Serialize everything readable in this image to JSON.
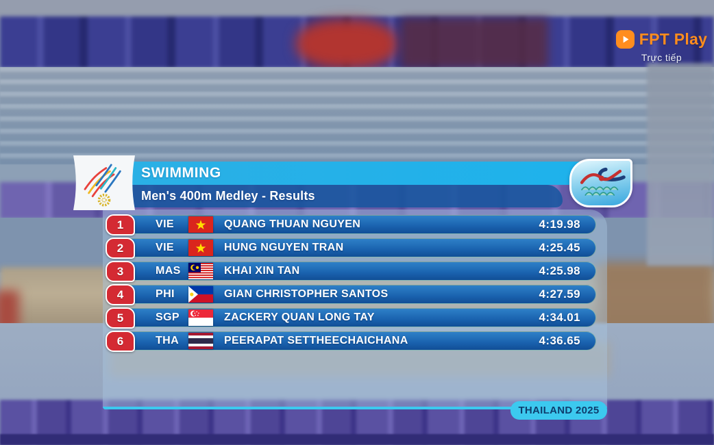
{
  "broadcaster": {
    "name": "FPT Play",
    "live_label": "Trực tiếp"
  },
  "header": {
    "sport_title": "SWIMMING",
    "event_title": "Men's 400m Medley - Results"
  },
  "results": [
    {
      "rank": "1",
      "country_code": "VIE",
      "flag": "vie",
      "flag_name": "vietnam-flag",
      "athlete": "QUANG THUAN NGUYEN",
      "time": "4:19.98"
    },
    {
      "rank": "2",
      "country_code": "VIE",
      "flag": "vie",
      "flag_name": "vietnam-flag",
      "athlete": "HUNG NGUYEN TRAN",
      "time": "4:25.45"
    },
    {
      "rank": "3",
      "country_code": "MAS",
      "flag": "mas",
      "flag_name": "malaysia-flag",
      "athlete": "KHAI XIN TAN",
      "time": "4:25.98"
    },
    {
      "rank": "4",
      "country_code": "PHI",
      "flag": "phi",
      "flag_name": "philippines-flag",
      "athlete": "GIAN CHRISTOPHER SANTOS",
      "time": "4:27.59"
    },
    {
      "rank": "5",
      "country_code": "SGP",
      "flag": "sgp",
      "flag_name": "singapore-flag",
      "athlete": "ZACKERY QUAN LONG TAY",
      "time": "4:34.01"
    },
    {
      "rank": "6",
      "country_code": "THA",
      "flag": "tha",
      "flag_name": "thailand-flag",
      "athlete": "PEERAPAT SETTHEECHAICHANA",
      "time": "4:36.65"
    }
  ],
  "footer": {
    "host_label": "THAILAND 2025"
  },
  "icons": {
    "games_logo": "sea-games-2025-logo",
    "sport_pictogram": "swimming-pictogram",
    "broadcaster_icon": "play-icon"
  },
  "colors": {
    "accent_cyan": "#1db2ec",
    "subtitle_blue": "#15569f",
    "row_blue": "#1a62ae",
    "rank_red": "#d42a33",
    "badge_cyan": "#3cc9ef",
    "fpt_orange": "#ff8d1e"
  }
}
